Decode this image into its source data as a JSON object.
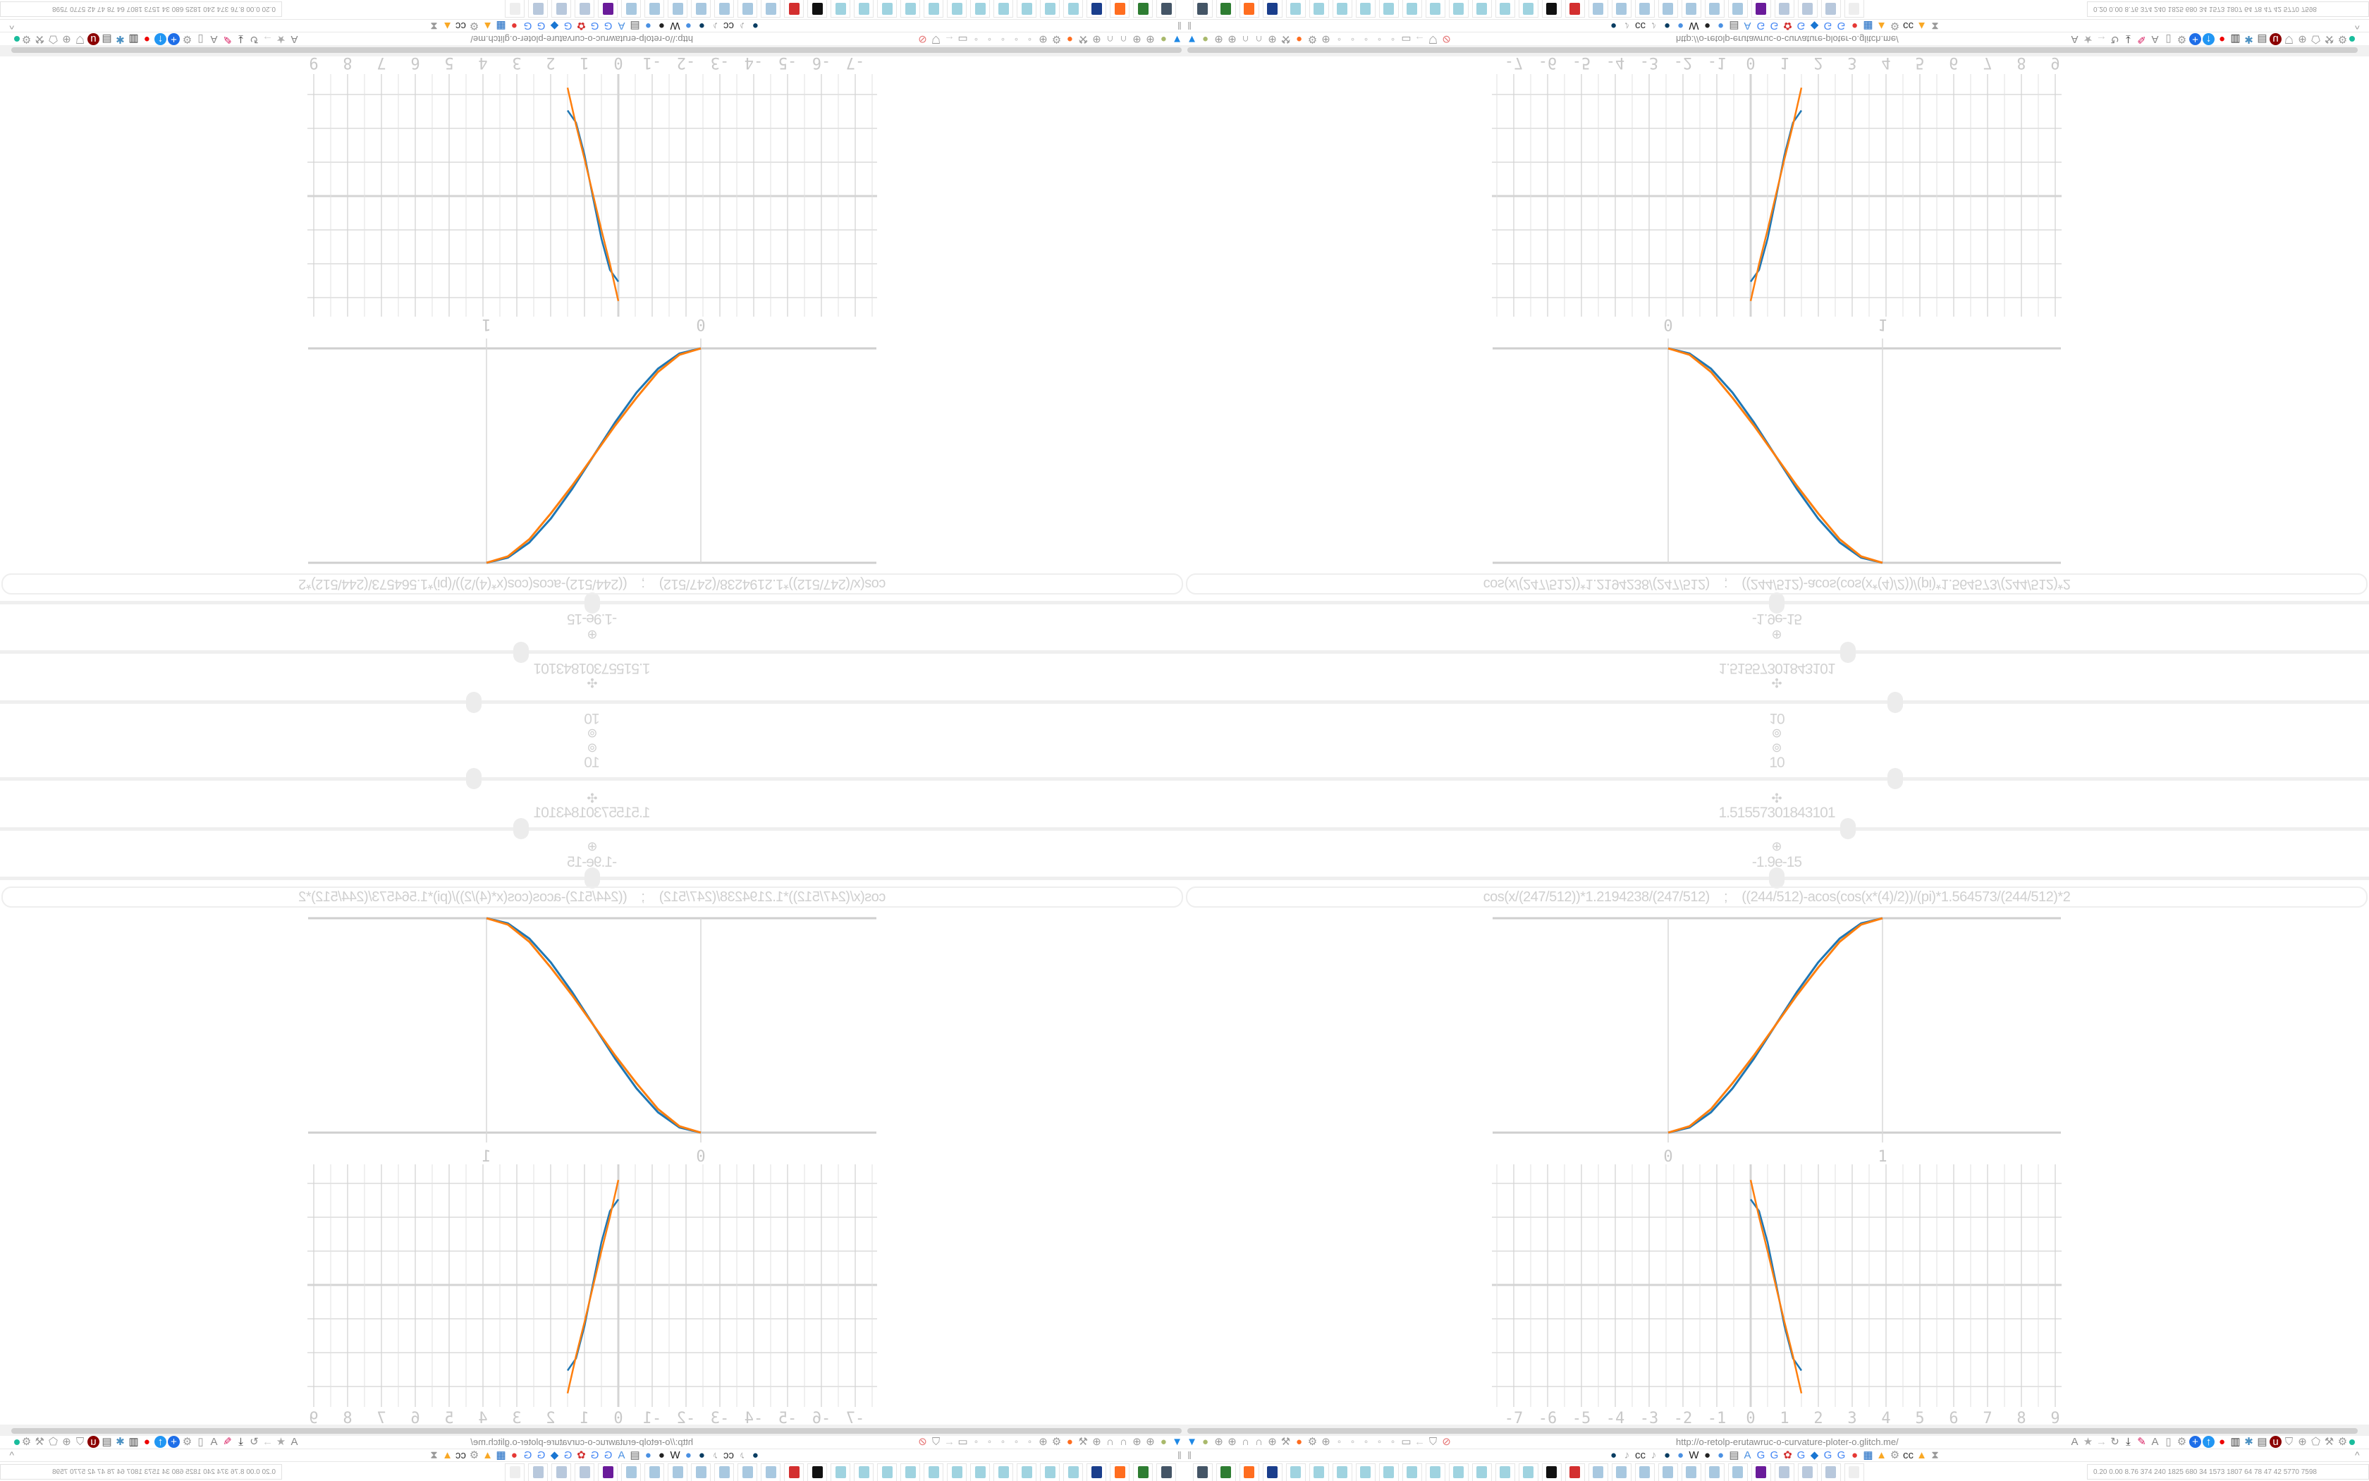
{
  "browser": {
    "url": "http://o-retolp-erutawruc-o-curvature-ploter-o.glitch.me/",
    "nav_icons_left": [
      "filter-icon",
      "camera-icon",
      "globe-icon",
      "globe-icon",
      "headphones-icon",
      "headphones-icon",
      "globe-icon",
      "wrench-icon",
      "firefox-icon",
      "gear-icon",
      "globe-icon",
      "dot-icon",
      "dot-icon",
      "dot-icon",
      "dot-icon",
      "dot-icon",
      "folder-icon",
      "back-arrow-icon",
      "shield-icon",
      "lock-crossed-icon"
    ],
    "nav_icons_right": [
      "translate-icon",
      "star-icon",
      "forward-arrow-icon",
      "reload-icon",
      "download-icon",
      "pencil-icon",
      "translate-icon",
      "mouse-icon",
      "gear-icon",
      "plus-icon",
      "upload-icon",
      "record-icon",
      "trash-icon",
      "network-icon",
      "archive-icon",
      "ublock-icon",
      "shield-icon",
      "globe-icon",
      "puzzle-icon",
      "wrench-icon",
      "gear-icon"
    ],
    "bookmark_icons": [
      "circle-icon",
      "speaker-icon",
      "cc-icon",
      "speaker-icon",
      "circle-icon",
      "pin-icon",
      "wikipedia-icon",
      "dark-icon",
      "pin-icon",
      "archive-icon",
      "a-icon",
      "google-icon",
      "google-icon",
      "settings-icon",
      "google-icon",
      "drive-icon",
      "google-icon",
      "google-icon",
      "red-icon",
      "grid-icon",
      "mountain-icon",
      "gear-icon",
      "cc-icon",
      "mountain-icon",
      "hourglass-icon"
    ],
    "colors": {
      "accent_green": "#1abc9c"
    }
  },
  "taskbar": {
    "apps": [
      "monitor-icon",
      "terminal-icon",
      "firefox-icon",
      "floppy-icon",
      "notepad-icon",
      "notepad-icon",
      "notepad-icon",
      "notepad-icon",
      "notepad-icon",
      "notepad-icon",
      "notepad-icon",
      "notepad-icon",
      "notepad-icon",
      "notepad-icon",
      "notepad-icon",
      "inkscape-icon",
      "red-app-icon",
      "calculator-icon",
      "calculator-icon",
      "calculator-icon",
      "calculator-icon",
      "calculator-icon",
      "calculator-icon",
      "calculator-icon",
      "purple-app-icon",
      "doc-icon",
      "doc-icon",
      "doc-icon",
      "blank-icon"
    ],
    "tray_text": "0.20 0.00 8.76 374 240 1825 680 34 1573 1807 64 78 47 42 5770 7598"
  },
  "controls": {
    "value_a": "10",
    "value_b": "1.51557301843101",
    "value_c": "-1.9e-15",
    "slider_a_fraction": 0.6,
    "slider_b_fraction": 0.56,
    "slider_c_fraction": 0.5,
    "formula": "cos(x/(247/512))*1.2194238/(247/512)    ;    ((244/512)-acos(cos(x*(4)/2))/(pi)*1.564573/(244/512)*2"
  },
  "chart_data": [
    {
      "type": "line",
      "xlim": [
        0,
        1
      ],
      "ylim": [
        0,
        1
      ],
      "x_ticks": [
        "0",
        "1"
      ],
      "series": [
        {
          "color": "#1f77b4",
          "x": [
            0,
            0.1,
            0.2,
            0.3,
            0.4,
            0.5,
            0.6,
            0.7,
            0.8,
            0.9,
            1
          ],
          "y": [
            0,
            0.024,
            0.095,
            0.206,
            0.345,
            0.5,
            0.655,
            0.794,
            0.905,
            0.976,
            1
          ]
        },
        {
          "color": "#ff7f0e",
          "x": [
            0,
            0.1,
            0.2,
            0.3,
            0.4,
            0.5,
            0.6,
            0.7,
            0.8,
            0.9,
            1
          ],
          "y": [
            0,
            0.03,
            0.11,
            0.23,
            0.36,
            0.5,
            0.64,
            0.77,
            0.89,
            0.97,
            1
          ]
        }
      ],
      "grid": false
    },
    {
      "type": "line",
      "xlim": [
        -7.6,
        9.2
      ],
      "ylim": [
        -3.6,
        3.6
      ],
      "x_ticks": [
        "-7",
        "-6",
        "-5",
        "-4",
        "-3",
        "-2",
        "-1",
        "0",
        "1",
        "2",
        "3",
        "4",
        "5",
        "6",
        "7",
        "8",
        "9"
      ],
      "series": [
        {
          "color": "#1f77b4",
          "x": [
            0,
            0.25,
            0.5,
            0.75,
            1,
            1.25,
            1.5
          ],
          "y": [
            2.53,
            2.18,
            1.26,
            0.04,
            -1.22,
            -2.17,
            -2.53
          ]
        },
        {
          "color": "#ff7f0e",
          "x": [
            0,
            0.25,
            0.5,
            0.75,
            1,
            1.25,
            1.5
          ],
          "y": [
            3.1,
            2.0,
            1.0,
            -0.05,
            -1.1,
            -2.1,
            -3.2
          ]
        }
      ],
      "grid": true
    }
  ]
}
